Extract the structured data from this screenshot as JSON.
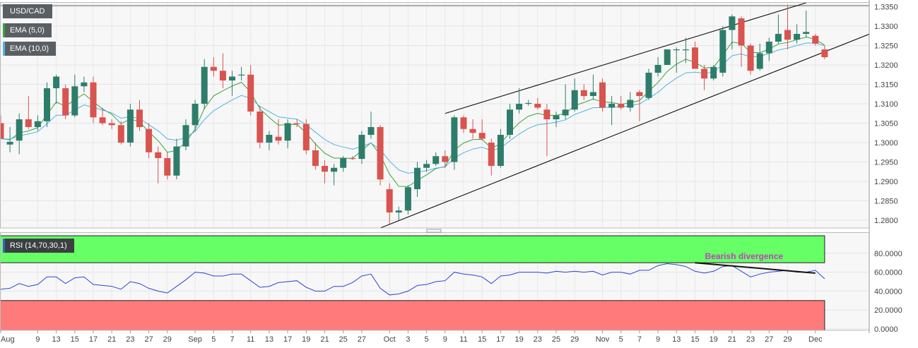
{
  "chart_data": [
    {
      "type": "candlestick",
      "title": "USD/CAD",
      "indicators": [
        {
          "name": "EMA (5,0)",
          "color": "#3aa33a"
        },
        {
          "name": "EMA (10,0)",
          "color": "#4fb3e8"
        }
      ],
      "ylim": [
        1.278,
        1.336
      ],
      "y_ticks": [
        "1.3350",
        "1.3300",
        "1.3250",
        "1.3200",
        "1.3150",
        "1.3100",
        "1.3050",
        "1.3000",
        "1.2950",
        "1.2900",
        "1.2850",
        "1.2800"
      ],
      "x_labels": [
        {
          "label": "Aug",
          "i": 0
        },
        {
          "label": "9",
          "i": 4
        },
        {
          "label": "13",
          "i": 6
        },
        {
          "label": "15",
          "i": 8
        },
        {
          "label": "17",
          "i": 10
        },
        {
          "label": "21",
          "i": 12
        },
        {
          "label": "23",
          "i": 14
        },
        {
          "label": "27",
          "i": 16
        },
        {
          "label": "29",
          "i": 18
        },
        {
          "label": "Sep",
          "i": 21
        },
        {
          "label": "5",
          "i": 23
        },
        {
          "label": "7",
          "i": 25
        },
        {
          "label": "11",
          "i": 27
        },
        {
          "label": "13",
          "i": 29
        },
        {
          "label": "17",
          "i": 31
        },
        {
          "label": "19",
          "i": 33
        },
        {
          "label": "21",
          "i": 35
        },
        {
          "label": "25",
          "i": 37
        },
        {
          "label": "27",
          "i": 39
        },
        {
          "label": "Oct",
          "i": 42
        },
        {
          "label": "3",
          "i": 44
        },
        {
          "label": "5",
          "i": 46
        },
        {
          "label": "9",
          "i": 48
        },
        {
          "label": "11",
          "i": 50
        },
        {
          "label": "15",
          "i": 52
        },
        {
          "label": "17",
          "i": 54
        },
        {
          "label": "19",
          "i": 56
        },
        {
          "label": "23",
          "i": 58
        },
        {
          "label": "25",
          "i": 60
        },
        {
          "label": "29",
          "i": 62
        },
        {
          "label": "Nov",
          "i": 65
        },
        {
          "label": "5",
          "i": 67
        },
        {
          "label": "7",
          "i": 69
        },
        {
          "label": "9",
          "i": 71
        },
        {
          "label": "13",
          "i": 73
        },
        {
          "label": "15",
          "i": 75
        },
        {
          "label": "19",
          "i": 77
        },
        {
          "label": "21",
          "i": 79
        },
        {
          "label": "23",
          "i": 81
        },
        {
          "label": "27",
          "i": 83
        },
        {
          "label": "29",
          "i": 85
        },
        {
          "label": "Dec",
          "i": 88
        }
      ],
      "colors": {
        "up": "#2e7d6b",
        "down": "#d9534f"
      },
      "candles": [
        {
          "o": 1.305,
          "h": 1.307,
          "l": 1.301,
          "c": 1.301
        },
        {
          "o": 1.2995,
          "h": 1.304,
          "l": 1.2975,
          "c": 1.3002
        },
        {
          "o": 1.3005,
          "h": 1.3075,
          "l": 1.297,
          "c": 1.306
        },
        {
          "o": 1.306,
          "h": 1.312,
          "l": 1.3035,
          "c": 1.304
        },
        {
          "o": 1.304,
          "h": 1.307,
          "l": 1.303,
          "c": 1.3055
        },
        {
          "o": 1.3055,
          "h": 1.3155,
          "l": 1.304,
          "c": 1.314
        },
        {
          "o": 1.314,
          "h": 1.3175,
          "l": 1.31,
          "c": 1.317
        },
        {
          "o": 1.314,
          "h": 1.315,
          "l": 1.306,
          "c": 1.307
        },
        {
          "o": 1.307,
          "h": 1.3175,
          "l": 1.3065,
          "c": 1.3145
        },
        {
          "o": 1.3145,
          "h": 1.317,
          "l": 1.313,
          "c": 1.3155
        },
        {
          "o": 1.3155,
          "h": 1.317,
          "l": 1.305,
          "c": 1.3065
        },
        {
          "o": 1.3065,
          "h": 1.309,
          "l": 1.3045,
          "c": 1.305
        },
        {
          "o": 1.305,
          "h": 1.306,
          "l": 1.3035,
          "c": 1.3045
        },
        {
          "o": 1.3045,
          "h": 1.3055,
          "l": 1.2995,
          "c": 1.3
        },
        {
          "o": 1.3,
          "h": 1.31,
          "l": 1.299,
          "c": 1.3085
        },
        {
          "o": 1.3085,
          "h": 1.311,
          "l": 1.303,
          "c": 1.304
        },
        {
          "o": 1.3035,
          "h": 1.305,
          "l": 1.296,
          "c": 1.2975
        },
        {
          "o": 1.2975,
          "h": 1.299,
          "l": 1.2895,
          "c": 1.296
        },
        {
          "o": 1.296,
          "h": 1.2975,
          "l": 1.2905,
          "c": 1.2915
        },
        {
          "o": 1.2915,
          "h": 1.301,
          "l": 1.2905,
          "c": 1.299
        },
        {
          "o": 1.299,
          "h": 1.306,
          "l": 1.298,
          "c": 1.3045
        },
        {
          "o": 1.3045,
          "h": 1.311,
          "l": 1.303,
          "c": 1.31
        },
        {
          "o": 1.31,
          "h": 1.3215,
          "l": 1.3085,
          "c": 1.3195
        },
        {
          "o": 1.3195,
          "h": 1.322,
          "l": 1.317,
          "c": 1.3185
        },
        {
          "o": 1.3185,
          "h": 1.323,
          "l": 1.314,
          "c": 1.316
        },
        {
          "o": 1.316,
          "h": 1.3185,
          "l": 1.312,
          "c": 1.317
        },
        {
          "o": 1.3175,
          "h": 1.3195,
          "l": 1.316,
          "c": 1.3175
        },
        {
          "o": 1.3175,
          "h": 1.32,
          "l": 1.307,
          "c": 1.308
        },
        {
          "o": 1.308,
          "h": 1.3095,
          "l": 1.2985,
          "c": 1.3
        },
        {
          "o": 1.3,
          "h": 1.303,
          "l": 1.298,
          "c": 1.302
        },
        {
          "o": 1.3015,
          "h": 1.306,
          "l": 1.2995,
          "c": 1.3005
        },
        {
          "o": 1.3005,
          "h": 1.306,
          "l": 1.2985,
          "c": 1.305
        },
        {
          "o": 1.305,
          "h": 1.306,
          "l": 1.304,
          "c": 1.3048
        },
        {
          "o": 1.3048,
          "h": 1.306,
          "l": 1.297,
          "c": 1.298
        },
        {
          "o": 1.298,
          "h": 1.3,
          "l": 1.293,
          "c": 1.294
        },
        {
          "o": 1.294,
          "h": 1.2955,
          "l": 1.2895,
          "c": 1.2925
        },
        {
          "o": 1.2925,
          "h": 1.2945,
          "l": 1.289,
          "c": 1.2935
        },
        {
          "o": 1.2935,
          "h": 1.2965,
          "l": 1.2925,
          "c": 1.296
        },
        {
          "o": 1.296,
          "h": 1.2965,
          "l": 1.2955,
          "c": 1.2958
        },
        {
          "o": 1.2958,
          "h": 1.303,
          "l": 1.2945,
          "c": 1.302
        },
        {
          "o": 1.302,
          "h": 1.308,
          "l": 1.301,
          "c": 1.304
        },
        {
          "o": 1.304,
          "h": 1.3045,
          "l": 1.289,
          "c": 1.2905
        },
        {
          "o": 1.288,
          "h": 1.2895,
          "l": 1.279,
          "c": 1.282
        },
        {
          "o": 1.282,
          "h": 1.2835,
          "l": 1.28,
          "c": 1.2825
        },
        {
          "o": 1.2825,
          "h": 1.289,
          "l": 1.2815,
          "c": 1.2885
        },
        {
          "o": 1.288,
          "h": 1.295,
          "l": 1.286,
          "c": 1.2935
        },
        {
          "o": 1.2935,
          "h": 1.2955,
          "l": 1.2925,
          "c": 1.2945
        },
        {
          "o": 1.2945,
          "h": 1.2975,
          "l": 1.294,
          "c": 1.2965
        },
        {
          "o": 1.2965,
          "h": 1.298,
          "l": 1.2935,
          "c": 1.295
        },
        {
          "o": 1.295,
          "h": 1.307,
          "l": 1.293,
          "c": 1.3065
        },
        {
          "o": 1.3065,
          "h": 1.307,
          "l": 1.3025,
          "c": 1.3035
        },
        {
          "o": 1.3035,
          "h": 1.306,
          "l": 1.301,
          "c": 1.3025
        },
        {
          "o": 1.3025,
          "h": 1.306,
          "l": 1.3005,
          "c": 1.301
        },
        {
          "o": 1.3,
          "h": 1.301,
          "l": 1.2915,
          "c": 1.294
        },
        {
          "o": 1.294,
          "h": 1.3035,
          "l": 1.2935,
          "c": 1.302
        },
        {
          "o": 1.302,
          "h": 1.31,
          "l": 1.301,
          "c": 1.3085
        },
        {
          "o": 1.3085,
          "h": 1.314,
          "l": 1.3075,
          "c": 1.31
        },
        {
          "o": 1.31,
          "h": 1.311,
          "l": 1.3095,
          "c": 1.3102
        },
        {
          "o": 1.31,
          "h": 1.3115,
          "l": 1.3085,
          "c": 1.309
        },
        {
          "o": 1.3085,
          "h": 1.31,
          "l": 1.2965,
          "c": 1.306
        },
        {
          "o": 1.306,
          "h": 1.308,
          "l": 1.304,
          "c": 1.307
        },
        {
          "o": 1.307,
          "h": 1.315,
          "l": 1.306,
          "c": 1.3085
        },
        {
          "o": 1.3085,
          "h": 1.3165,
          "l": 1.308,
          "c": 1.3135
        },
        {
          "o": 1.3135,
          "h": 1.315,
          "l": 1.311,
          "c": 1.312
        },
        {
          "o": 1.312,
          "h": 1.3175,
          "l": 1.311,
          "c": 1.313
        },
        {
          "o": 1.3155,
          "h": 1.3165,
          "l": 1.308,
          "c": 1.309
        },
        {
          "o": 1.309,
          "h": 1.312,
          "l": 1.3045,
          "c": 1.31
        },
        {
          "o": 1.31,
          "h": 1.312,
          "l": 1.3085,
          "c": 1.309
        },
        {
          "o": 1.309,
          "h": 1.313,
          "l": 1.308,
          "c": 1.311
        },
        {
          "o": 1.313,
          "h": 1.3135,
          "l": 1.3055,
          "c": 1.312
        },
        {
          "o": 1.3115,
          "h": 1.319,
          "l": 1.311,
          "c": 1.318
        },
        {
          "o": 1.318,
          "h": 1.322,
          "l": 1.317,
          "c": 1.32
        },
        {
          "o": 1.32,
          "h": 1.324,
          "l": 1.32,
          "c": 1.324
        },
        {
          "o": 1.324,
          "h": 1.3245,
          "l": 1.318,
          "c": 1.324
        },
        {
          "o": 1.324,
          "h": 1.327,
          "l": 1.3205,
          "c": 1.324
        },
        {
          "o": 1.3245,
          "h": 1.326,
          "l": 1.319,
          "c": 1.319
        },
        {
          "o": 1.319,
          "h": 1.32,
          "l": 1.3135,
          "c": 1.3165
        },
        {
          "o": 1.3165,
          "h": 1.32,
          "l": 1.316,
          "c": 1.3195
        },
        {
          "o": 1.318,
          "h": 1.33,
          "l": 1.317,
          "c": 1.329
        },
        {
          "o": 1.329,
          "h": 1.333,
          "l": 1.324,
          "c": 1.3325
        },
        {
          "o": 1.332,
          "h": 1.3325,
          "l": 1.3195,
          "c": 1.325
        },
        {
          "o": 1.325,
          "h": 1.3255,
          "l": 1.3175,
          "c": 1.3185
        },
        {
          "o": 1.319,
          "h": 1.3255,
          "l": 1.3185,
          "c": 1.323
        },
        {
          "o": 1.323,
          "h": 1.327,
          "l": 1.321,
          "c": 1.326
        },
        {
          "o": 1.326,
          "h": 1.333,
          "l": 1.3255,
          "c": 1.328
        },
        {
          "o": 1.329,
          "h": 1.3355,
          "l": 1.324,
          "c": 1.3265
        },
        {
          "o": 1.3265,
          "h": 1.3305,
          "l": 1.3255,
          "c": 1.328
        },
        {
          "o": 1.328,
          "h": 1.334,
          "l": 1.327,
          "c": 1.3285
        },
        {
          "o": 1.3275,
          "h": 1.328,
          "l": 1.325,
          "c": 1.3255
        },
        {
          "o": 1.324,
          "h": 1.325,
          "l": 1.3215,
          "c": 1.322
        }
      ],
      "channel_lines": [
        {
          "name": "upper",
          "from": {
            "i": 48,
            "y": 1.3075
          },
          "to": {
            "i": 87,
            "y": 1.336
          }
        },
        {
          "name": "lower",
          "from": {
            "i": 41,
            "y": 1.278
          },
          "to": {
            "i": 96,
            "y": 1.33
          }
        }
      ],
      "reference_line": 1.3353,
      "grid": true
    },
    {
      "type": "line",
      "title": "RSI (14,70,30,1)",
      "ylim": [
        0,
        100
      ],
      "y_ticks": [
        "80.0000",
        "60.0000",
        "40.0000",
        "20.0000",
        "0.0000"
      ],
      "overbought": 70,
      "oversold": 30,
      "zone_colors": {
        "overbought": "#66ff66",
        "oversold": "#ff7b7b"
      },
      "line_color": "#2b45d8",
      "values": [
        42,
        43,
        48,
        45,
        47,
        55,
        55,
        48,
        54,
        55,
        47,
        46,
        45,
        42,
        50,
        48,
        43,
        40,
        38,
        45,
        52,
        60,
        59,
        56,
        56,
        58,
        58,
        51,
        44,
        45,
        49,
        50,
        51,
        44,
        40,
        40,
        45,
        45,
        49,
        56,
        58,
        43,
        36,
        37,
        40,
        46,
        47,
        50,
        51,
        60,
        58,
        57,
        55,
        48,
        56,
        57,
        60,
        60,
        60,
        59,
        61,
        60,
        61,
        60,
        61,
        57,
        60,
        60,
        58,
        62,
        62,
        67,
        69,
        68,
        66,
        61,
        59,
        61,
        66,
        67,
        61,
        55,
        58,
        60,
        61,
        62,
        60,
        60,
        62,
        53
      ],
      "annotation": {
        "text": "Bearish divergence",
        "color": "#c23fc2"
      },
      "divergence_line": {
        "from": {
          "i": 75,
          "y": 70
        },
        "to": {
          "i": 88,
          "y": 59
        }
      }
    }
  ]
}
